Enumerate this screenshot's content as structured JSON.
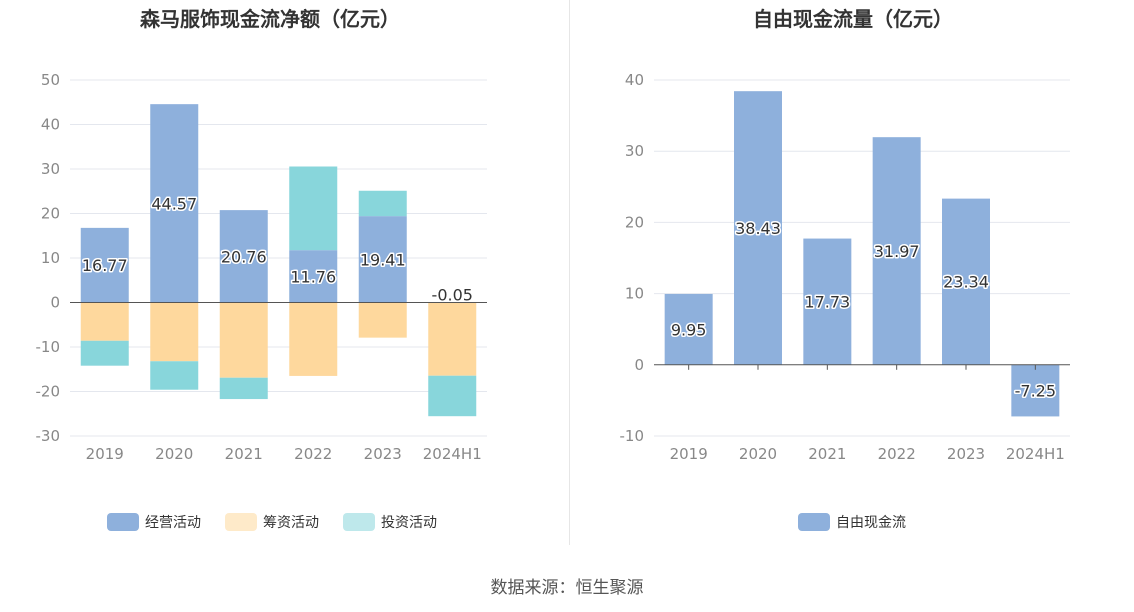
{
  "source": "数据来源：恒生聚源",
  "colors": {
    "operating": "#8eb0dc",
    "financing": "#fed89d",
    "investing": "#88d6db",
    "free": "#8eb0dc",
    "grid": "#e4e7ee",
    "axis": "#555555",
    "tick_text": "#888888",
    "title": "#333333"
  },
  "chart_data": [
    {
      "type": "bar",
      "stacked": true,
      "title": "森马服饰现金流净额（亿元）",
      "categories": [
        "2019",
        "2020",
        "2021",
        "2022",
        "2023",
        "2024H1"
      ],
      "ylim": [
        -30,
        50
      ],
      "yticks": [
        50,
        40,
        30,
        20,
        10,
        0,
        -10,
        -20,
        -30
      ],
      "grid": true,
      "legend_position": "bottom",
      "series": [
        {
          "name": "经营活动",
          "color_key": "operating",
          "values": [
            16.77,
            44.57,
            20.76,
            11.76,
            19.41,
            -0.05
          ],
          "labels": [
            "16.77",
            "44.57",
            "20.76",
            "11.76",
            "19.41",
            "-0.05"
          ]
        },
        {
          "name": "筹资活动",
          "color_key": "financing",
          "values": [
            -8.6,
            -13.2,
            -16.9,
            -16.5,
            -7.9,
            -16.4
          ]
        },
        {
          "name": "投资活动",
          "color_key": "investing",
          "values": [
            -5.6,
            -6.4,
            -4.8,
            18.8,
            5.7,
            -9.1
          ]
        }
      ]
    },
    {
      "type": "bar",
      "title": "自由现金流量（亿元）",
      "categories": [
        "2019",
        "2020",
        "2021",
        "2022",
        "2023",
        "2024H1"
      ],
      "ylim": [
        -10,
        40
      ],
      "yticks": [
        40,
        30,
        20,
        10,
        0,
        -10
      ],
      "grid": true,
      "legend_position": "bottom",
      "series": [
        {
          "name": "自由现金流",
          "color_key": "free",
          "values": [
            9.95,
            38.43,
            17.73,
            31.97,
            23.34,
            -7.25
          ],
          "labels": [
            "9.95",
            "38.43",
            "17.73",
            "31.97",
            "23.34",
            "-7.25"
          ]
        }
      ]
    }
  ]
}
